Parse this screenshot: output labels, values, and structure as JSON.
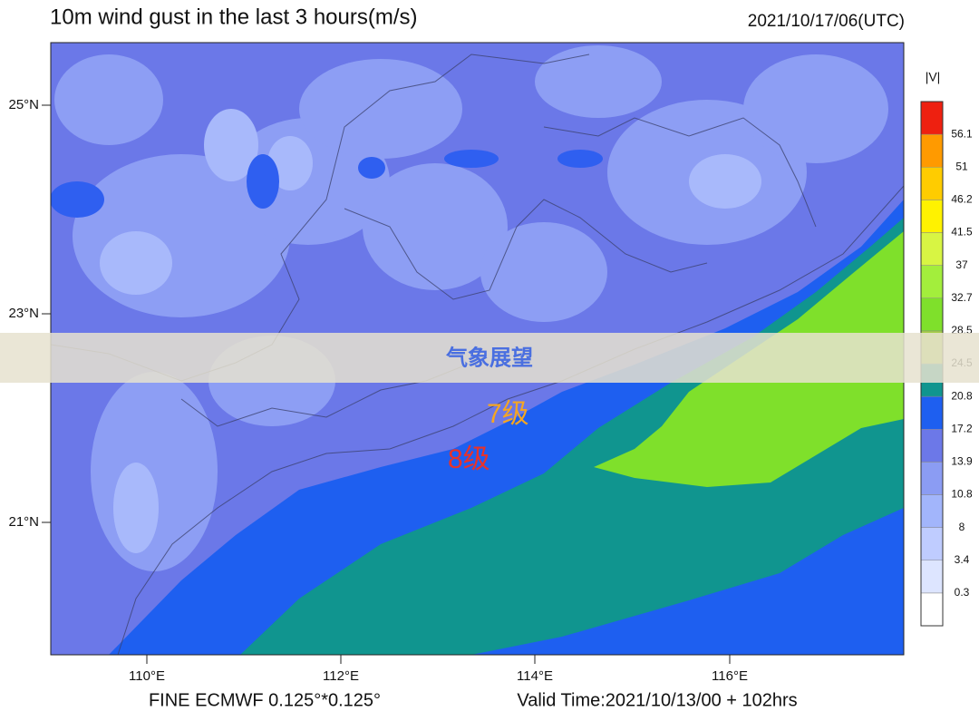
{
  "header": {
    "title": "10m wind gust in the last 3 hours(m/s)",
    "timestamp": "2021/10/17/06(UTC)"
  },
  "map": {
    "lat_labels": [
      "25°N",
      "23°N",
      "21°N"
    ],
    "lon_labels": [
      "110°E",
      "112°E",
      "114°E",
      "116°E"
    ],
    "annotations": [
      "7级",
      "8级"
    ]
  },
  "colorbar": {
    "title": "|V|",
    "levels": [
      0.3,
      3.4,
      8,
      10.8,
      13.9,
      17.2,
      20.8,
      24.5,
      28.5,
      32.7,
      37,
      41.5,
      46.2,
      51,
      56.1
    ],
    "colors": [
      "#ffffff",
      "#dde5ff",
      "#bfccff",
      "#a2b5fb",
      "#8b9cf3",
      "#6c78e8",
      "#1e5ff0",
      "#10958f",
      "#a6cf45",
      "#7fe02b",
      "#a3ee3c",
      "#d8f543",
      "#fff200",
      "#ffcc00",
      "#ff9a00",
      "#ee2010"
    ]
  },
  "footer": {
    "left": "FINE ECMWF 0.125°*0.125°",
    "right": "Valid Time:2021/10/13/00 + 102hrs"
  },
  "watermark": "气象展望"
}
